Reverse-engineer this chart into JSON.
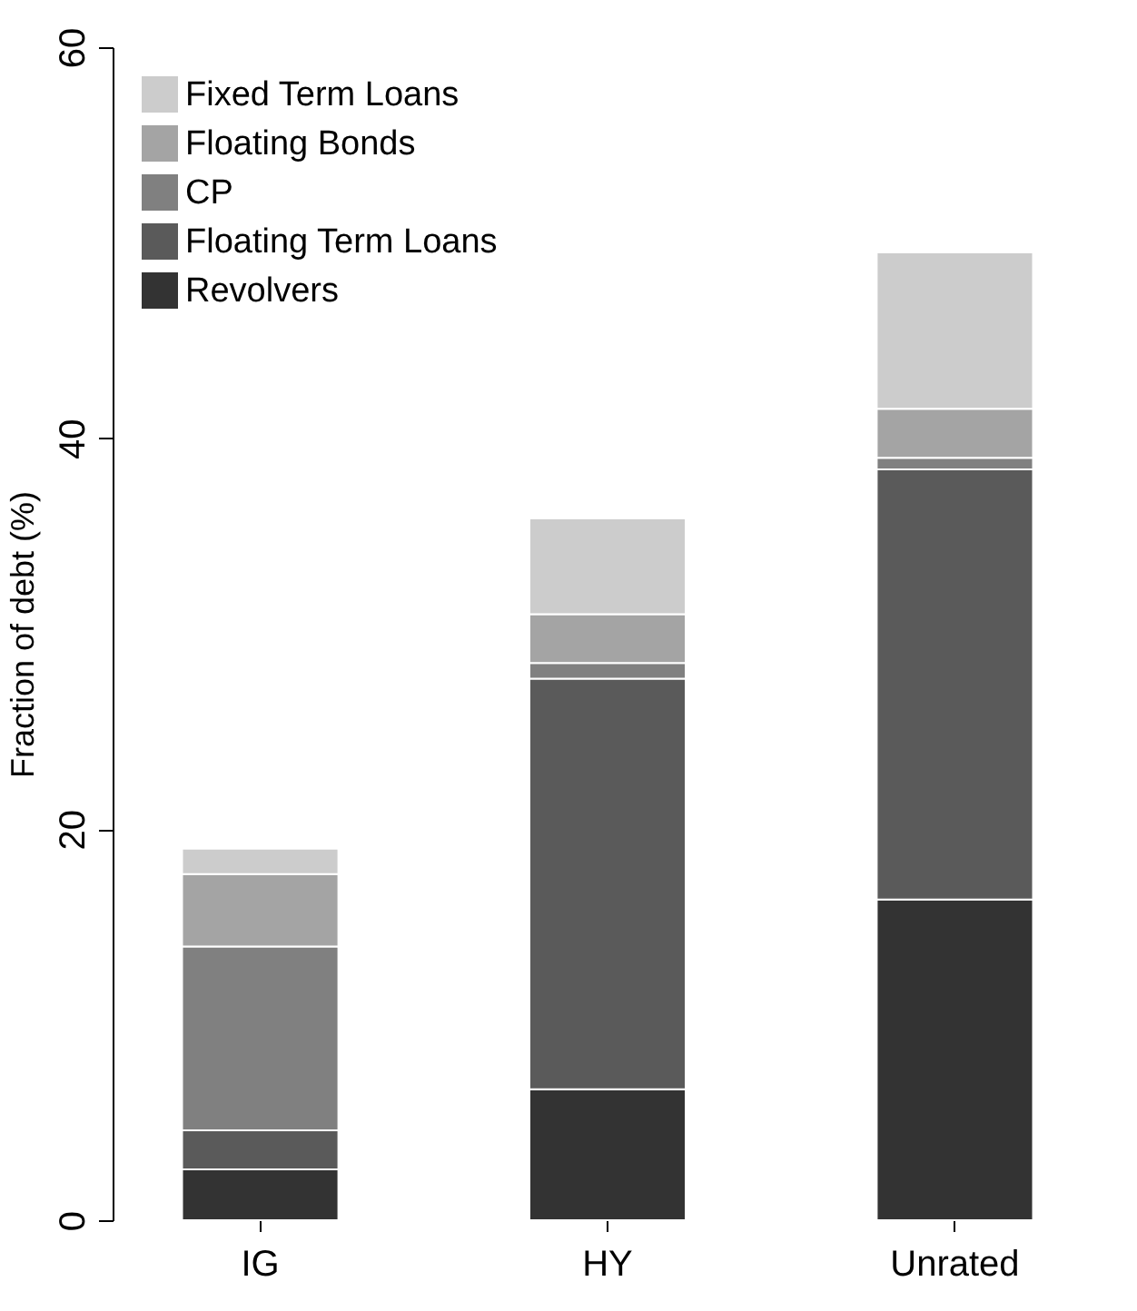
{
  "chart_data": {
    "type": "bar",
    "stacked": true,
    "ylabel": "Fraction of debt (%)",
    "categories": [
      "IG",
      "HY",
      "Unrated"
    ],
    "series": [
      {
        "name": "Revolvers",
        "color": "#333333",
        "values": [
          2.6,
          6.7,
          16.4
        ]
      },
      {
        "name": "Floating Term Loans",
        "color": "#5a5a5a",
        "values": [
          2.0,
          21.0,
          22.0
        ]
      },
      {
        "name": "CP",
        "color": "#808080",
        "values": [
          9.4,
          0.8,
          0.6
        ]
      },
      {
        "name": "Floating Bonds",
        "color": "#a4a4a4",
        "values": [
          3.7,
          2.5,
          2.5
        ]
      },
      {
        "name": "Fixed Term Loans",
        "color": "#cccccc",
        "values": [
          1.3,
          4.9,
          8.0
        ]
      }
    ],
    "ylim": [
      0,
      60
    ],
    "yticks": [
      0,
      20,
      40,
      60
    ],
    "grid": false,
    "legend": "top left"
  }
}
